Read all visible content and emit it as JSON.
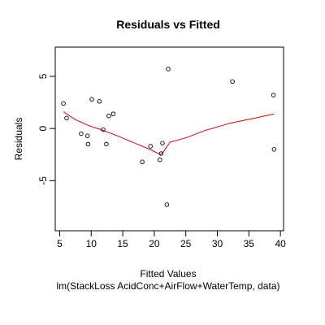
{
  "chart_data": {
    "type": "scatter",
    "title": "Residuals vs Fitted",
    "xlabel": "Fitted Values",
    "subtitle": "lm(StackLoss AcidConc+AirFlow+WaterTemp, data)",
    "ylabel": "Residuals",
    "xlim": [
      4.3,
      40.5
    ],
    "ylim": [
      -9.8,
      7.8
    ],
    "xticks": [
      5,
      10,
      15,
      20,
      25,
      30,
      35,
      40
    ],
    "yticks": [
      -5,
      0,
      5
    ],
    "points": [
      {
        "x": 5.6,
        "y": 2.4
      },
      {
        "x": 6.1,
        "y": 1.0
      },
      {
        "x": 8.4,
        "y": -0.5
      },
      {
        "x": 9.4,
        "y": -0.7
      },
      {
        "x": 9.5,
        "y": -1.5
      },
      {
        "x": 10.1,
        "y": 2.8
      },
      {
        "x": 11.3,
        "y": 2.6
      },
      {
        "x": 11.9,
        "y": -0.1
      },
      {
        "x": 12.4,
        "y": -1.5
      },
      {
        "x": 12.8,
        "y": 1.2
      },
      {
        "x": 13.5,
        "y": 1.4
      },
      {
        "x": 18.1,
        "y": -3.2
      },
      {
        "x": 19.4,
        "y": -1.7
      },
      {
        "x": 20.9,
        "y": -3.0
      },
      {
        "x": 21.1,
        "y": -2.4
      },
      {
        "x": 21.3,
        "y": -1.4
      },
      {
        "x": 22.0,
        "y": -7.3
      },
      {
        "x": 22.2,
        "y": 5.7
      },
      {
        "x": 32.4,
        "y": 4.5
      },
      {
        "x": 38.9,
        "y": 3.2
      },
      {
        "x": 39.0,
        "y": -2.0
      }
    ],
    "smooth": {
      "color": "#dd0000",
      "points": [
        {
          "x": 5.6,
          "y": 1.6
        },
        {
          "x": 7.5,
          "y": 0.85
        },
        {
          "x": 9.5,
          "y": 0.3
        },
        {
          "x": 11.5,
          "y": -0.1
        },
        {
          "x": 13.5,
          "y": -0.55
        },
        {
          "x": 15.5,
          "y": -1.05
        },
        {
          "x": 17.5,
          "y": -1.55
        },
        {
          "x": 19.5,
          "y": -2.05
        },
        {
          "x": 21.0,
          "y": -2.5
        },
        {
          "x": 21.5,
          "y": -2.2
        },
        {
          "x": 22.5,
          "y": -1.3
        },
        {
          "x": 25.0,
          "y": -0.9
        },
        {
          "x": 28.0,
          "y": -0.2
        },
        {
          "x": 32.0,
          "y": 0.5
        },
        {
          "x": 36.0,
          "y": 1.0
        },
        {
          "x": 39.0,
          "y": 1.4
        }
      ]
    },
    "grid": false
  }
}
